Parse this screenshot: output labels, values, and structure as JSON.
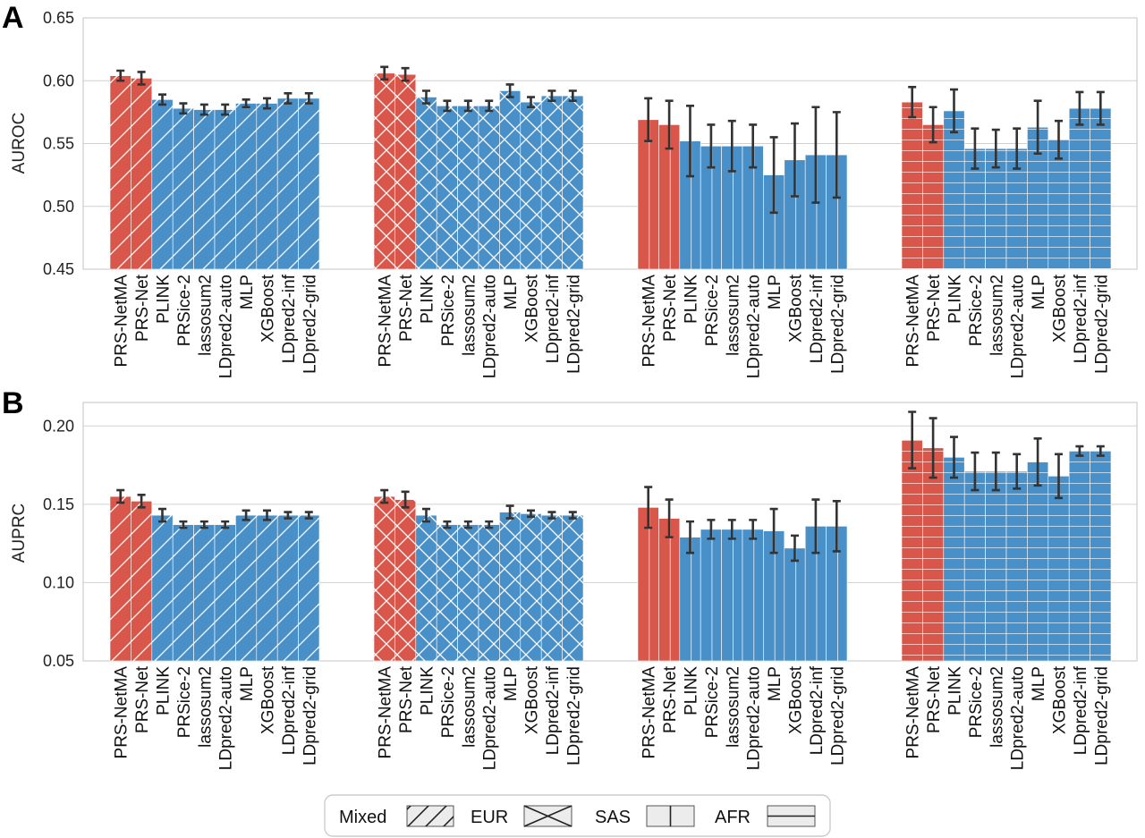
{
  "chart_data": [
    {
      "panel": "A",
      "type": "bar",
      "ylabel": "AUROC",
      "ylim": [
        0.45,
        0.65
      ],
      "yticks": [
        "0.45",
        "0.50",
        "0.55",
        "0.60",
        "0.65"
      ],
      "grid": true,
      "groups": [
        "Mixed",
        "EUR",
        "SAS",
        "AFR"
      ],
      "categories": [
        "PRS-NetMA",
        "PRS-Net",
        "PLINK",
        "PRSice-2",
        "lassosum2",
        "LDpred2-auto",
        "MLP",
        "XGBoost",
        "LDpred2-inf",
        "LDpred2-grid"
      ],
      "series": [
        {
          "values": [
            0.604,
            0.602,
            0.585,
            0.578,
            0.577,
            0.577,
            0.582,
            0.582,
            0.586,
            0.586
          ],
          "errors": [
            0.004,
            0.005,
            0.004,
            0.004,
            0.004,
            0.004,
            0.003,
            0.004,
            0.004,
            0.004
          ]
        },
        {
          "values": [
            0.606,
            0.605,
            0.587,
            0.58,
            0.58,
            0.58,
            0.592,
            0.583,
            0.588,
            0.588
          ],
          "errors": [
            0.005,
            0.005,
            0.005,
            0.004,
            0.004,
            0.004,
            0.005,
            0.004,
            0.004,
            0.004
          ]
        },
        {
          "values": [
            0.569,
            0.565,
            0.552,
            0.548,
            0.548,
            0.548,
            0.525,
            0.537,
            0.541,
            0.541
          ],
          "errors": [
            0.017,
            0.019,
            0.028,
            0.017,
            0.02,
            0.017,
            0.03,
            0.029,
            0.038,
            0.034
          ]
        },
        {
          "values": [
            0.583,
            0.565,
            0.576,
            0.546,
            0.546,
            0.546,
            0.563,
            0.553,
            0.578,
            0.578
          ],
          "errors": [
            0.012,
            0.014,
            0.017,
            0.016,
            0.015,
            0.016,
            0.021,
            0.015,
            0.013,
            0.013
          ]
        }
      ]
    },
    {
      "panel": "B",
      "type": "bar",
      "ylabel": "AUPRC",
      "ylim": [
        0.05,
        0.215
      ],
      "yticks": [
        "0.05",
        "0.10",
        "0.15",
        "0.20"
      ],
      "grid": true,
      "groups": [
        "Mixed",
        "EUR",
        "SAS",
        "AFR"
      ],
      "categories": [
        "PRS-NetMA",
        "PRS-Net",
        "PLINK",
        "PRSice-2",
        "lassosum2",
        "LDpred2-auto",
        "MLP",
        "XGBoost",
        "LDpred2-inf",
        "LDpred2-grid"
      ],
      "series": [
        {
          "values": [
            0.155,
            0.152,
            0.143,
            0.137,
            0.137,
            0.137,
            0.143,
            0.143,
            0.143,
            0.143
          ],
          "errors": [
            0.004,
            0.004,
            0.004,
            0.002,
            0.002,
            0.002,
            0.003,
            0.003,
            0.002,
            0.002
          ]
        },
        {
          "values": [
            0.155,
            0.153,
            0.143,
            0.137,
            0.137,
            0.137,
            0.145,
            0.144,
            0.143,
            0.143
          ],
          "errors": [
            0.004,
            0.005,
            0.004,
            0.002,
            0.002,
            0.002,
            0.004,
            0.002,
            0.002,
            0.002
          ]
        },
        {
          "values": [
            0.148,
            0.141,
            0.129,
            0.134,
            0.134,
            0.134,
            0.133,
            0.122,
            0.136,
            0.136
          ],
          "errors": [
            0.013,
            0.012,
            0.01,
            0.006,
            0.006,
            0.006,
            0.014,
            0.008,
            0.017,
            0.016
          ]
        },
        {
          "values": [
            0.191,
            0.186,
            0.18,
            0.171,
            0.171,
            0.171,
            0.177,
            0.168,
            0.184,
            0.184
          ],
          "errors": [
            0.018,
            0.019,
            0.013,
            0.012,
            0.012,
            0.011,
            0.015,
            0.014,
            0.003,
            0.003
          ]
        }
      ]
    }
  ],
  "colors": {
    "highlight": "#d9574a",
    "baseline": "#4a90c8",
    "hatch": "#ffffff",
    "error_bar": "#333333",
    "grid": "#d0d0d0",
    "axes_edge": "#cccccc"
  },
  "highlight_methods": [
    "PRS-NetMA",
    "PRS-Net"
  ],
  "hatch_by_group": {
    "Mixed": "diagonal",
    "EUR": "cross",
    "SAS": "vertical",
    "AFR": "horizontal"
  },
  "legend": {
    "placement": "bottom-center",
    "items": [
      {
        "label": "Mixed",
        "hatch": "diagonal"
      },
      {
        "label": "EUR",
        "hatch": "cross"
      },
      {
        "label": "SAS",
        "hatch": "vertical"
      },
      {
        "label": "AFR",
        "hatch": "horizontal"
      }
    ]
  }
}
